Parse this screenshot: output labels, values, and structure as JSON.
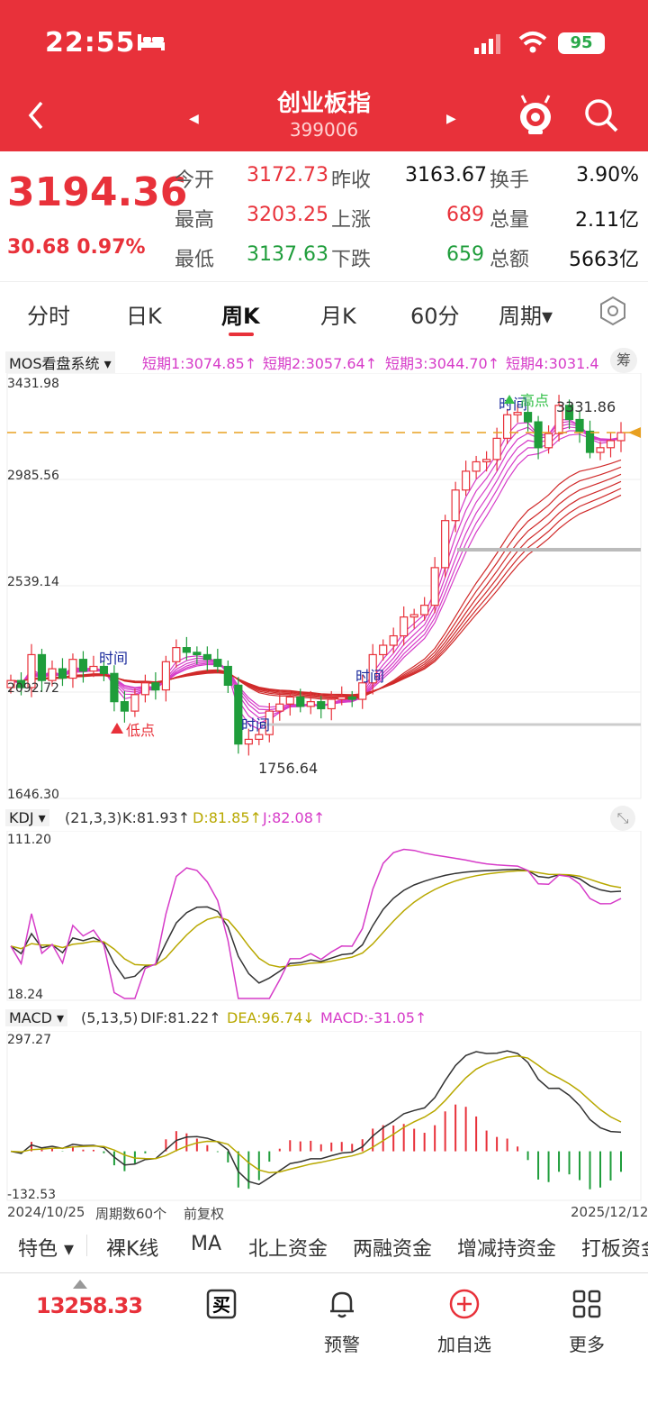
{
  "status": {
    "time": "22:55",
    "battery": "95"
  },
  "header": {
    "title": "创业板指",
    "code": "399006"
  },
  "quote": {
    "price": "3194.36",
    "change": "30.68 0.97%",
    "open_label": "今开",
    "open": "3172.73",
    "prev_label": "昨收",
    "prev": "3163.67",
    "turnover_label": "换手",
    "turnover": "3.90%",
    "high_label": "最高",
    "high": "3203.25",
    "up_label": "上涨",
    "up": "689",
    "volume_label": "总量",
    "volume": "2.11亿",
    "low_label": "最低",
    "low": "3137.63",
    "down_label": "下跌",
    "down": "659",
    "amount_label": "总额",
    "amount": "5663亿"
  },
  "tabs": [
    "分时",
    "日K",
    "周K",
    "月K",
    "60分",
    "周期▾"
  ],
  "colors": {
    "brand": "#e8313a",
    "up": "#e8313a",
    "down": "#1f9d3b"
  },
  "main_indicator": {
    "name": "MOS看盘系统",
    "s1": "短期1:3074.85↑",
    "s2": "短期2:3057.64↑",
    "s3": "短期3:3044.70↑",
    "s4": "短期4:3031.4",
    "chip_label": "筹",
    "y_top": "3431.98",
    "y_2": "2985.56",
    "y_3": "2539.14",
    "y_4": "2092.72",
    "y_bottom": "1646.30",
    "high_mark": "3331.86",
    "low_mark": "1756.64",
    "label_time": "时间",
    "label_high": "高点",
    "label_low": "低点"
  },
  "kdj": {
    "name": "KDJ",
    "params": "(21,3,3)",
    "k": "K:81.93↑",
    "d": "D:81.85↑",
    "j": "J:82.08↑",
    "y_top": "111.20",
    "y_bottom": "18.24"
  },
  "macd": {
    "name": "MACD",
    "params": "(5,13,5)",
    "dif": "DIF:81.22↑",
    "dea": "DEA:96.74↓",
    "macd": "MACD:-31.05↑",
    "y_top": "297.27",
    "y_bottom": "-132.53"
  },
  "footer_info": {
    "start": "2024/10/25",
    "count": "周期数60个",
    "adj": "前复权",
    "end": "2025/12/12"
  },
  "bottom_tabs": [
    "特色 ▾",
    "裸K线",
    "MA",
    "北上资金",
    "两融资金",
    "增减持资金",
    "打板资金"
  ],
  "tabbar": {
    "index_value": "13258.33",
    "buy": "买",
    "alert": "预警",
    "add": "加自选",
    "more": "更多"
  },
  "chart_data": {
    "type": "candlestick",
    "period": "weekly",
    "x_start": "2024/10/25",
    "x_end": "2025/12/12",
    "count": 60,
    "ylim": [
      1646.3,
      3431.98
    ],
    "close": [
      2140,
      2110,
      2250,
      2140,
      2190,
      2150,
      2230,
      2180,
      2200,
      2170,
      2050,
      2010,
      2080,
      2130,
      2100,
      2220,
      2280,
      2260,
      2250,
      2230,
      2200,
      2120,
      1870,
      1890,
      1910,
      2010,
      2040,
      2070,
      2030,
      2050,
      2020,
      2060,
      2070,
      2060,
      2130,
      2250,
      2290,
      2330,
      2410,
      2420,
      2460,
      2620,
      2820,
      2950,
      3030,
      3070,
      3080,
      3170,
      3270,
      3280,
      3240,
      3130,
      3190,
      3310,
      3250,
      3200,
      3110,
      3130,
      3160,
      3194
    ]
  }
}
